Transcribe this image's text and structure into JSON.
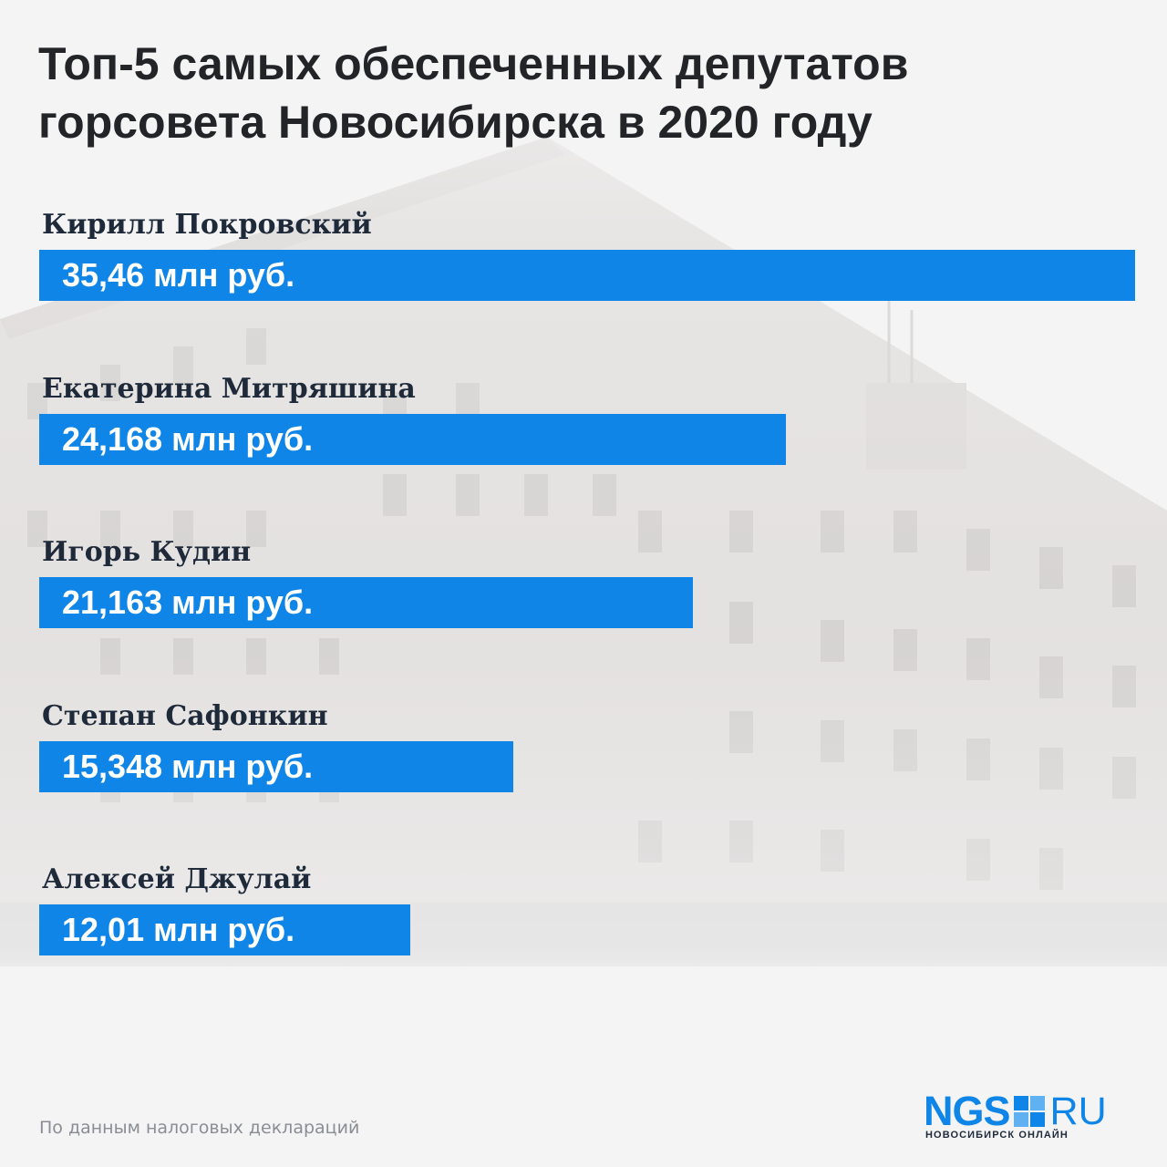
{
  "title_line1": "Топ-5 самых обеспеченных депутатов",
  "title_line2": "горсовета Новосибирска в 2020 году",
  "source_note": "По данным налоговых деклараций",
  "logo": {
    "main": "NGS",
    "suffix": "RU",
    "subtitle": "НОВОСИБИРСК ОНЛАЙН"
  },
  "colors": {
    "bar": "#0f85e8",
    "title": "#222428",
    "names": "#1e2a3a"
  },
  "chart_data": {
    "type": "bar",
    "orientation": "horizontal",
    "categories": [
      "Кирилл Покровский",
      "Екатерина Митряшина",
      "Игорь Кудин",
      "Степан Сафонкин",
      "Алексей Джулай"
    ],
    "values": [
      35.46,
      24.168,
      21.163,
      15.348,
      12.01
    ],
    "value_labels": [
      "35,46 млн руб.",
      "24,168 млн руб.",
      "21,163 млн руб.",
      "15,348 млн руб.",
      "12,01 млн руб."
    ],
    "title": "Топ-5 самых обеспеченных депутатов горсовета Новосибирска в 2020 году",
    "xlabel": "",
    "ylabel": "",
    "grid": false,
    "legend": "none"
  }
}
